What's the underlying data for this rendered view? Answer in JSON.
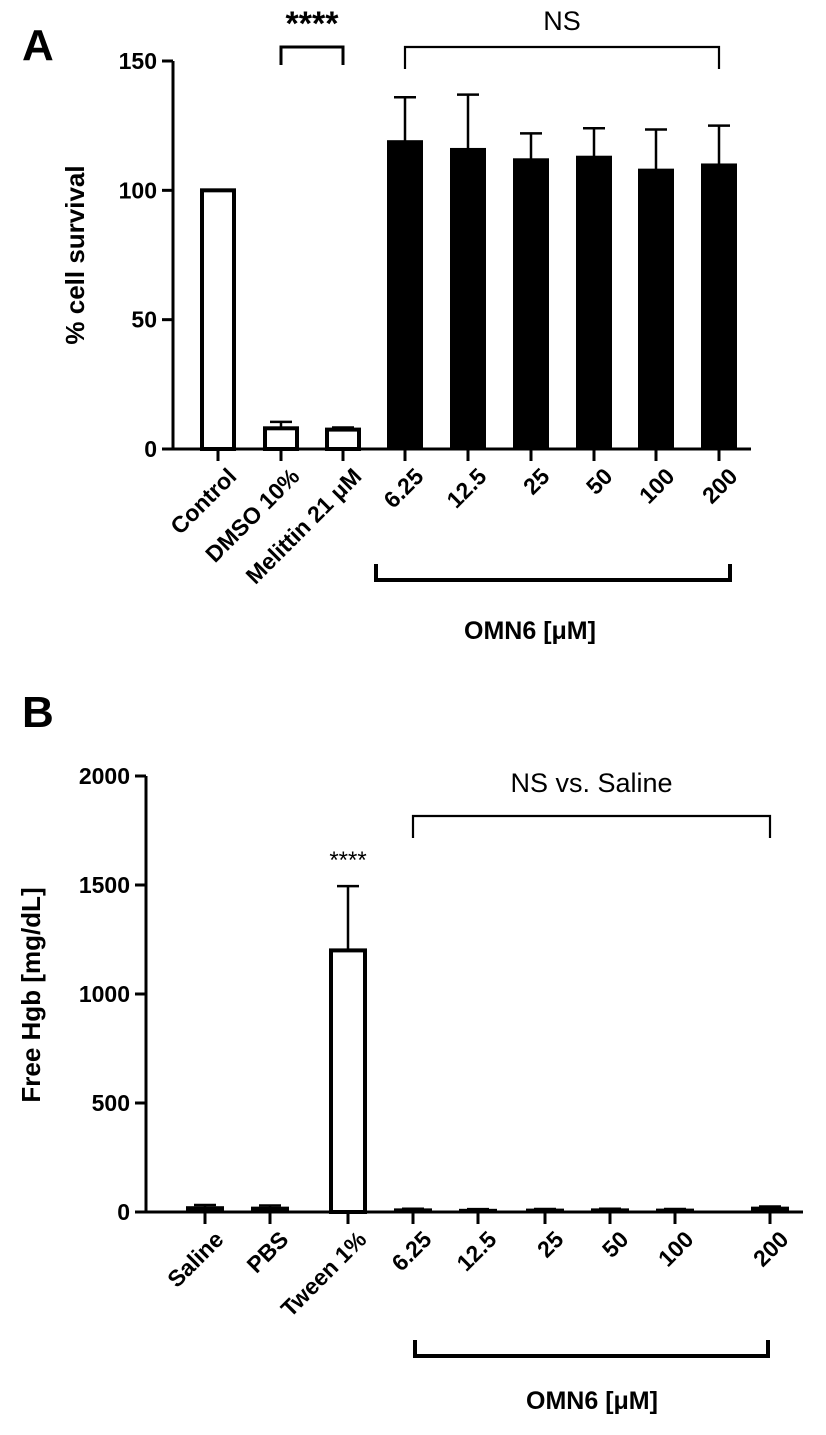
{
  "chart_data": [
    {
      "panel": "A",
      "type": "bar",
      "ylabel": "% cell survival",
      "ylim": [
        0,
        150
      ],
      "yticks": [
        0,
        50,
        100,
        150
      ],
      "categories": [
        "Control",
        "DMSO 10%",
        "Melittin 21 μM",
        "6.25",
        "12.5",
        "25",
        "50",
        "100",
        "200"
      ],
      "values": [
        100,
        8,
        7.5,
        119,
        116,
        112,
        113,
        108,
        110
      ],
      "errors": [
        0,
        2.5,
        0.8,
        17,
        21,
        10,
        11,
        15.5,
        15
      ],
      "fills": [
        "open",
        "open",
        "open",
        "solid",
        "solid",
        "solid",
        "solid",
        "solid",
        "solid"
      ],
      "group_label": "OMN6 [μM]",
      "annotations": [
        {
          "text": "****",
          "from": 1,
          "to": 2
        },
        {
          "text": "NS",
          "from": 3,
          "to": 8
        }
      ]
    },
    {
      "panel": "B",
      "type": "bar",
      "ylabel": "Free Hgb [mg/dL]",
      "ylim": [
        0,
        2000
      ],
      "yticks": [
        0,
        500,
        1000,
        1500,
        2000
      ],
      "categories": [
        "Saline",
        "PBS",
        "Tween 1%",
        "6.25",
        "12.5",
        "25",
        "50",
        "100",
        "200"
      ],
      "values": [
        22,
        20,
        1200,
        12,
        10,
        11,
        12,
        11,
        20
      ],
      "errors": [
        10,
        10,
        295,
        3,
        3,
        3,
        3,
        3,
        5
      ],
      "fills": [
        "solid",
        "solid",
        "open",
        "solid",
        "solid",
        "solid",
        "solid",
        "solid",
        "solid"
      ],
      "group_label": "OMN6 [μM]",
      "annotations": [
        {
          "text": "****",
          "over": 2
        },
        {
          "text": "NS vs. Saline",
          "from": 3,
          "to": 8
        }
      ]
    }
  ]
}
